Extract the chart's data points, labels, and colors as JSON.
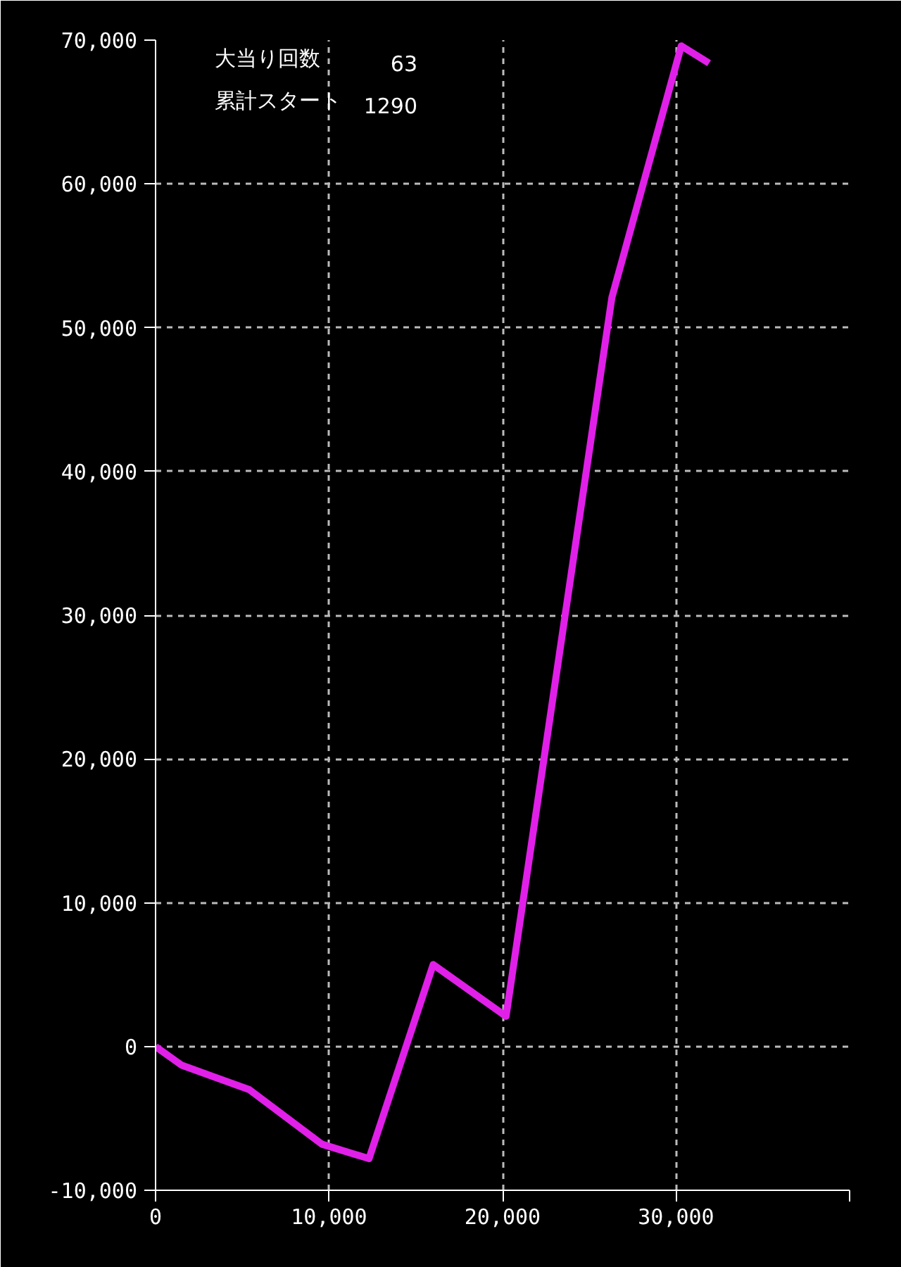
{
  "chart_data": {
    "type": "line",
    "x": [
      0,
      1500,
      5400,
      9600,
      12300,
      16000,
      20200,
      26300,
      30300,
      31900
    ],
    "series": [
      {
        "color": "#e020e8",
        "values": [
          0,
          -1300,
          -3000,
          -6800,
          -7800,
          5700,
          2100,
          52100,
          69600,
          68400
        ]
      }
    ],
    "xlim": [
      0,
      40000
    ],
    "xticks": [
      0,
      {
        "value": 10000,
        "label": "10,000"
      },
      {
        "value": 20000,
        "label": "20,000"
      },
      {
        "value": 30000,
        "label": "30,000"
      },
      {
        "value": 40000,
        "label": null
      }
    ],
    "ylim": [
      -10000,
      70000
    ],
    "yticks": [
      {
        "value": -10000,
        "label": "-10,000"
      },
      0,
      {
        "value": 10000,
        "label": "10,000"
      },
      {
        "value": 20000,
        "label": "20,000"
      },
      {
        "value": 30000,
        "label": "30,000"
      },
      {
        "value": 40000,
        "label": "40,000"
      },
      {
        "value": 50000,
        "label": "50,000"
      },
      {
        "value": 60000,
        "label": "60,000"
      },
      {
        "value": 70000,
        "label": "70,000"
      }
    ],
    "grid": true,
    "line_style": "solid",
    "marker": "none",
    "annotations": [
      [
        "大当り回数",
        "63"
      ],
      [
        "累計スタート",
        "1290"
      ]
    ]
  }
}
